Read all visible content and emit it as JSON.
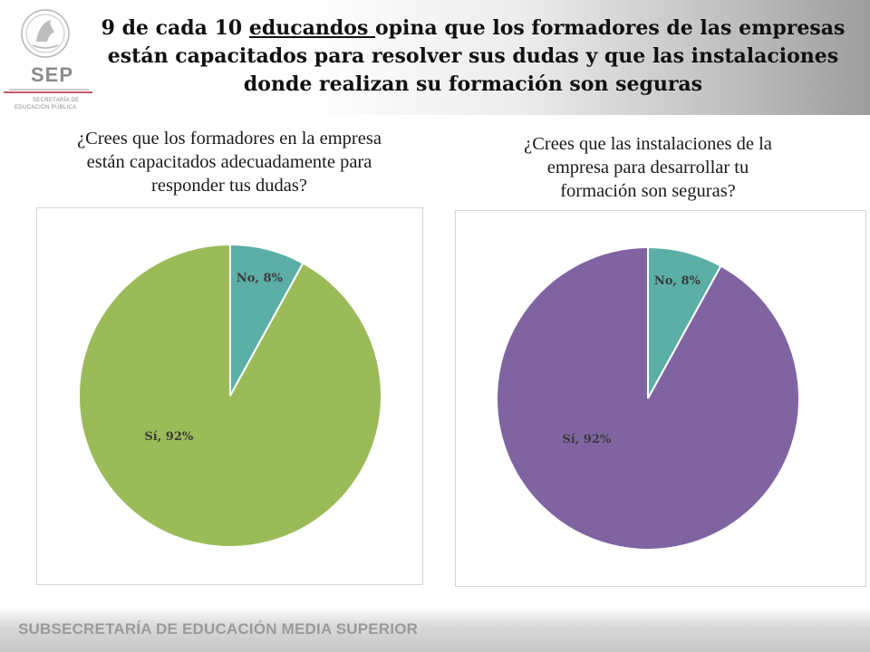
{
  "header": {
    "title_part1": "9 de cada 10 ",
    "title_underlined": "educandos ",
    "title_part2": "opina que los formadores de las empresas están capacitados para resolver sus dudas y que las instalaciones donde realizan su formación son seguras"
  },
  "logo": {
    "text": "SEP",
    "subtitle1": "SECRETARÍA DE",
    "subtitle2": "EDUCACIÓN PÚBLICA"
  },
  "questions": {
    "q1": [
      "¿Crees que los formadores en la empresa",
      "están capacitados adecuadamente para",
      "responder tus dudas?"
    ],
    "q2": [
      "¿Crees que  las instalaciones de la",
      "empresa para desarrollar tu",
      "formación son seguras?"
    ]
  },
  "footer": {
    "text": "SUBSECRETARÍA DE EDUCACIÓN MEDIA SUPERIOR"
  },
  "chart_data": [
    {
      "type": "pie",
      "title": "¿Crees que los formadores en la empresa están capacitados adecuadamente para responder tus dudas?",
      "categories": [
        "No",
        "Sí"
      ],
      "values": [
        8,
        92
      ],
      "labels": [
        "No, 8%",
        "Sí, 92%"
      ],
      "colors": [
        "#5bafa6",
        "#9bbb59"
      ]
    },
    {
      "type": "pie",
      "title": "¿Crees que  las instalaciones de la empresa para desarrollar tu formación son seguras?",
      "categories": [
        "No",
        "Sí"
      ],
      "values": [
        8,
        92
      ],
      "labels": [
        "No, 8%",
        "Sí, 92%"
      ],
      "colors": [
        "#5bafa6",
        "#8064a2"
      ]
    }
  ]
}
